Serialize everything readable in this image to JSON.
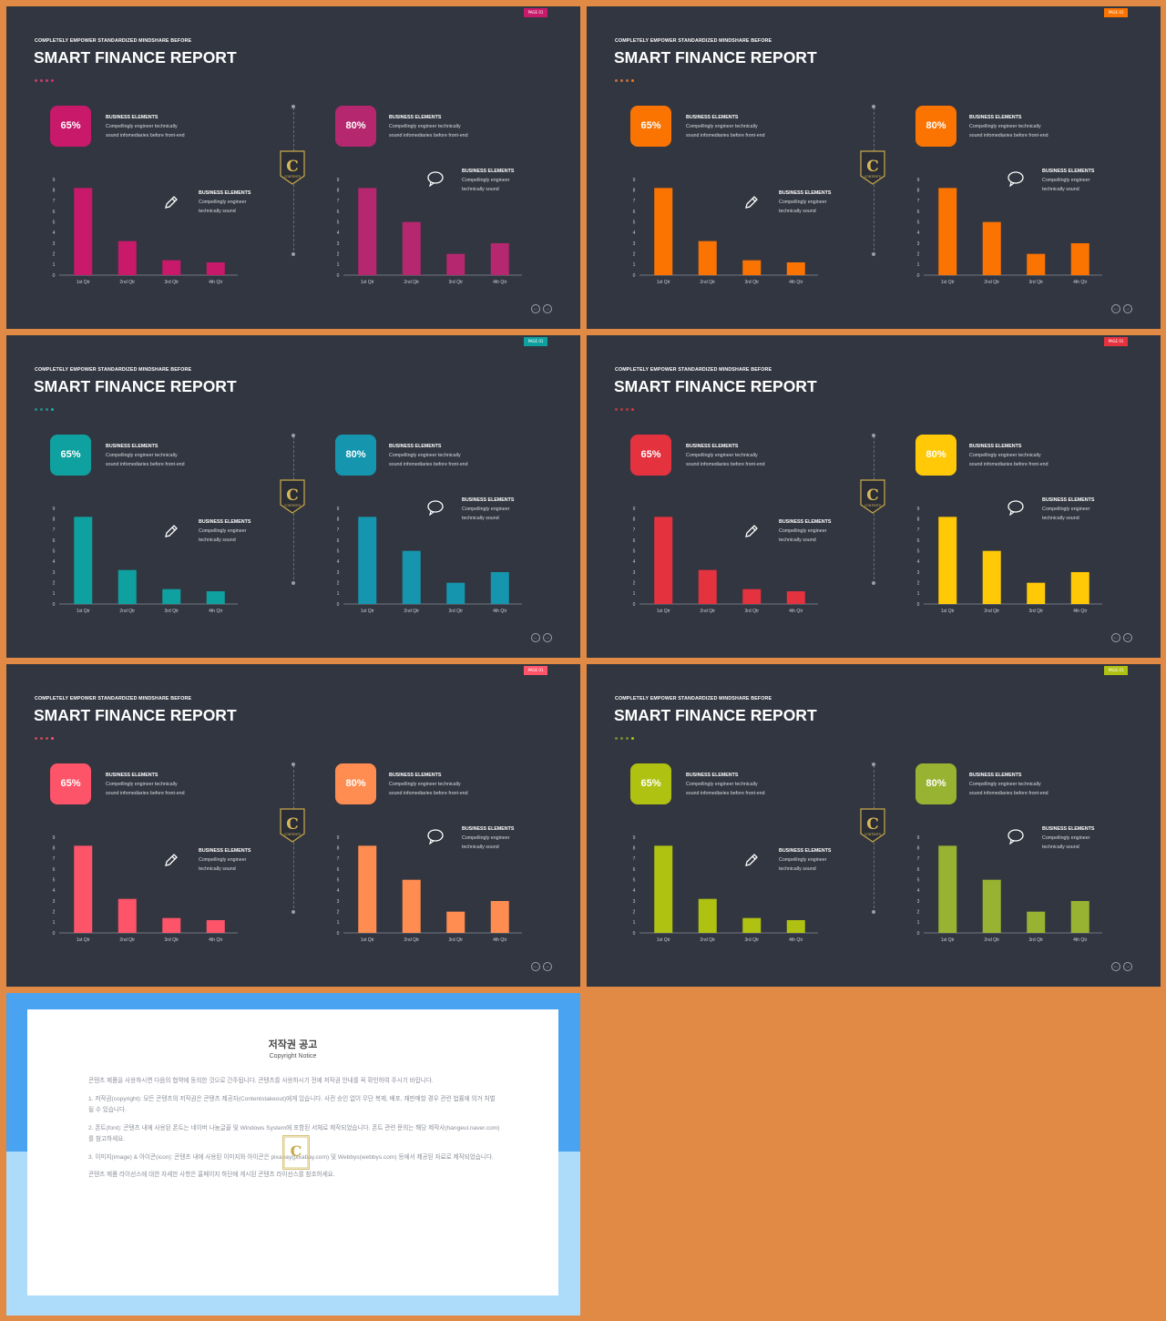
{
  "slides": [
    {
      "tag": "PAGE 01",
      "kicker": "COMPLETELY EMPOWER STANDARDIZED MINDSHARE BEFORE",
      "title": "SMART FINANCE REPORT",
      "c1": "#C8196B",
      "c2": "#B5276E",
      "dots": [
        "#c0436a",
        "#c0436a",
        "#c0436a",
        "#e22a74"
      ],
      "p1": "65%",
      "p2": "80%"
    },
    {
      "tag": "PAGE 01",
      "kicker": "COMPLETELY EMPOWER STANDARDIZED MINDSHARE BEFORE",
      "title": "SMART FINANCE REPORT",
      "c1": "#FB7402",
      "c2": "#FB7402",
      "dots": [
        "#c07040",
        "#c07040",
        "#c07040",
        "#fb7402"
      ],
      "p1": "65%",
      "p2": "80%"
    },
    {
      "tag": "PAGE 01",
      "kicker": "COMPLETELY EMPOWER STANDARDIZED MINDSHARE BEFORE",
      "title": "SMART FINANCE REPORT",
      "c1": "#0EA19F",
      "c2": "#1596AE",
      "dots": [
        "#2a8a8a",
        "#2a8a8a",
        "#2a8a8a",
        "#12b3b3"
      ],
      "p1": "65%",
      "p2": "80%"
    },
    {
      "tag": "PAGE 01",
      "kicker": "COMPLETELY EMPOWER STANDARDIZED MINDSHARE BEFORE",
      "title": "SMART FINANCE REPORT",
      "c1": "#E4323F",
      "c2": "#FFC908",
      "dots": [
        "#b03a44",
        "#b03a44",
        "#b03a44",
        "#e4323f"
      ],
      "p1": "65%",
      "p2": "80%"
    },
    {
      "tag": "PAGE 01",
      "kicker": "COMPLETELY EMPOWER STANDARDIZED MINDSHARE BEFORE",
      "title": "SMART FINANCE REPORT",
      "c1": "#FE5469",
      "c2": "#FF8C50",
      "dots": [
        "#c04a5a",
        "#c04a5a",
        "#c04a5a",
        "#fe5469"
      ],
      "p1": "65%",
      "p2": "80%"
    },
    {
      "tag": "PAGE 01",
      "kicker": "COMPLETELY EMPOWER STANDARDIZED MINDSHARE BEFORE",
      "title": "SMART FINANCE REPORT",
      "c1": "#AFC212",
      "c2": "#98B332",
      "dots": [
        "#7a8a30",
        "#7a8a30",
        "#7a8a30",
        "#afc212"
      ],
      "p1": "65%",
      "p2": "80%"
    }
  ],
  "box_text": {
    "heading": "BUSINESS ELEMENTS",
    "line1": "Compellingly engineer technically",
    "line2": "sound infomediaries before front-end"
  },
  "side_text": {
    "heading": "BUSINESS ELEMENTS",
    "line1": "Compellingly engineer",
    "line2": "technically sound"
  },
  "logo": {
    "letter": "C",
    "word": "CONTENTS"
  },
  "chart_data": [
    {
      "type": "bar",
      "categories": [
        "1st Qtr",
        "2nd Qtr",
        "3rd Qtr",
        "4th Qtr"
      ],
      "values": [
        8.2,
        3.2,
        1.4,
        1.2
      ],
      "ylim": [
        0,
        9
      ],
      "yticks": [
        "0",
        "1",
        "2",
        "3",
        "4",
        "5",
        "6",
        "7",
        "8",
        "9"
      ]
    },
    {
      "type": "bar",
      "categories": [
        "1st Qtr",
        "2nd Qtr",
        "3rd Qtr",
        "4th Qtr"
      ],
      "values": [
        8.2,
        5,
        2,
        3
      ],
      "ylim": [
        0,
        9
      ],
      "yticks": [
        "0",
        "1",
        "2",
        "3",
        "4",
        "5",
        "6",
        "7",
        "8",
        "9"
      ]
    }
  ],
  "notice": {
    "title": "저작권 공고",
    "subtitle": "Copyright Notice",
    "paragraphs": [
      "콘텐츠 제품을 사용하시면 다음의 협약에 동의한 것으로 간주됩니다. 콘텐츠를 사용하시기 전에 저작권 안내를 꼭 확인하여 주시기 바랍니다.",
      "1. 저작권(copyright): 모든 콘텐츠의 저작권은 콘텐츠 제공자(Contentstakeout)에게 있습니다. 사전 승인 없이 무단 복제, 배포, 재판매할 경우 관련 법률에 의거 처벌될 수 있습니다.",
      "2. 폰트(font): 콘텐츠 내에 사용된 폰트는 네이버 나눔글꼴 및 Windows System에 포함된 서체로 제작되었습니다. 폰트 관련 문의는 해당 제작사(hangeul.naver.com)를 참고하세요.",
      "3. 이미지(image) & 아이콘(icon): 콘텐츠 내에 사용된 이미지와 아이콘은 pixabay(pixabay.com) 및 Webbys(webbys.com) 등에서 제공된 자료로 제작되었습니다.",
      "콘텐츠 제품 라이선스에 대한 자세한 사항은 홈페이지 하단에 게시된 콘텐츠 라이선스를 참조하세요."
    ]
  }
}
